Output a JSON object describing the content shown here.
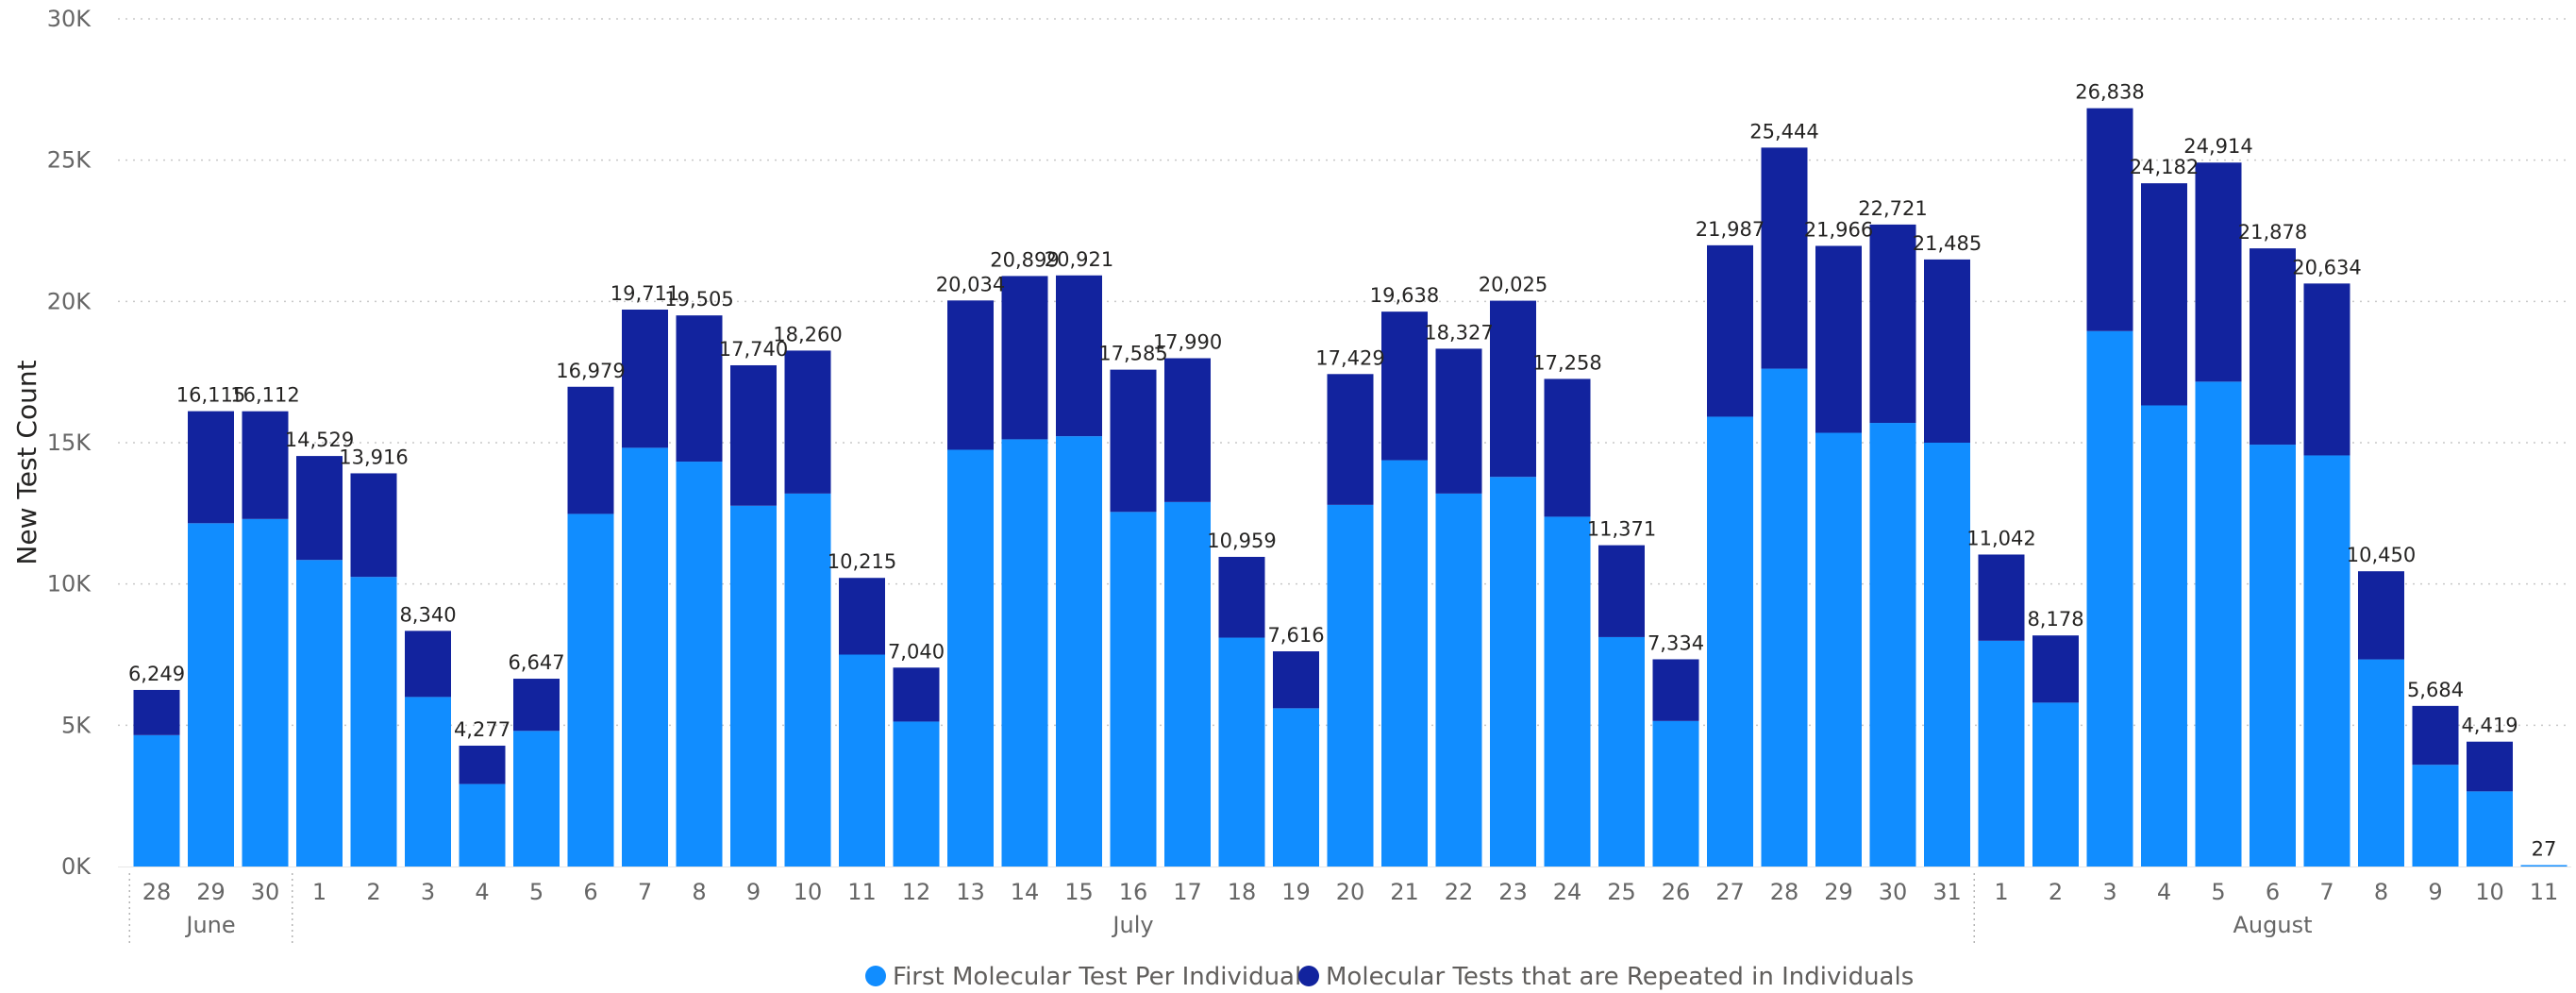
{
  "chart_data": {
    "type": "bar",
    "stacked": true,
    "title": "",
    "ylabel": "New Test Count",
    "xlabel": "",
    "ylim": [
      0,
      30000
    ],
    "y_ticks": [
      {
        "value": 0,
        "label": "0K"
      },
      {
        "value": 5000,
        "label": "5K"
      },
      {
        "value": 10000,
        "label": "10K"
      },
      {
        "value": 15000,
        "label": "15K"
      },
      {
        "value": 20000,
        "label": "20K"
      },
      {
        "value": 25000,
        "label": "25K"
      },
      {
        "value": 30000,
        "label": "30K"
      }
    ],
    "grid": "horizontal-dotted",
    "legend_position": "bottom-center",
    "categories": [
      "28",
      "29",
      "30",
      "1",
      "2",
      "3",
      "4",
      "5",
      "6",
      "7",
      "8",
      "9",
      "10",
      "11",
      "12",
      "13",
      "14",
      "15",
      "16",
      "17",
      "18",
      "19",
      "20",
      "21",
      "22",
      "23",
      "24",
      "25",
      "26",
      "27",
      "28",
      "29",
      "30",
      "31",
      "1",
      "2",
      "3",
      "4",
      "5",
      "6",
      "7",
      "8",
      "9",
      "10",
      "11"
    ],
    "month_groups": [
      {
        "label": "June",
        "count": 3
      },
      {
        "label": "July",
        "count": 31
      },
      {
        "label": "August",
        "count": 11
      }
    ],
    "series": [
      {
        "name": "First Molecular Test Per Individual",
        "color": "#118DFF",
        "values": [
          4650,
          12150,
          12300,
          10850,
          10250,
          6000,
          2920,
          4800,
          12480,
          14820,
          14330,
          12770,
          13200,
          7500,
          5130,
          14750,
          15120,
          15230,
          12550,
          12900,
          8100,
          5600,
          12800,
          14380,
          13200,
          13790,
          12380,
          8120,
          5150,
          15920,
          17620,
          15350,
          15700,
          15000,
          7990,
          5800,
          18950,
          16320,
          17160,
          14930,
          14550,
          7330,
          3600,
          2660,
          27
        ]
      },
      {
        "name": "Molecular Tests that are Repeated in Individuals",
        "color": "#12239E",
        "values": [
          1599,
          3965,
          3812,
          3679,
          3666,
          2340,
          1357,
          1847,
          4499,
          4891,
          5175,
          4970,
          5060,
          2715,
          1910,
          5284,
          5779,
          5691,
          5035,
          5090,
          2859,
          2016,
          4629,
          5258,
          5127,
          6235,
          4878,
          3251,
          2184,
          6067,
          7824,
          6616,
          7021,
          6485,
          3052,
          2378,
          7888,
          7862,
          7754,
          6948,
          6084,
          3120,
          2084,
          1759,
          0
        ]
      }
    ],
    "totals": [
      "6,249",
      "16,115",
      "16,112",
      "14,529",
      "13,916",
      "8,340",
      "4,277",
      "6,647",
      "16,979",
      "19,711",
      "19,505",
      "17,740",
      "18,260",
      "10,215",
      "7,040",
      "20,034",
      "20,899",
      "20,921",
      "17,585",
      "17,990",
      "10,959",
      "7,616",
      "17,429",
      "19,638",
      "18,327",
      "20,025",
      "17,258",
      "11,371",
      "7,334",
      "21,987",
      "25,444",
      "21,966",
      "22,721",
      "21,485",
      "11,042",
      "8,178",
      "26,838",
      "24,182",
      "24,914",
      "21,878",
      "20,634",
      "10,450",
      "5,684",
      "4,419",
      "27"
    ]
  }
}
